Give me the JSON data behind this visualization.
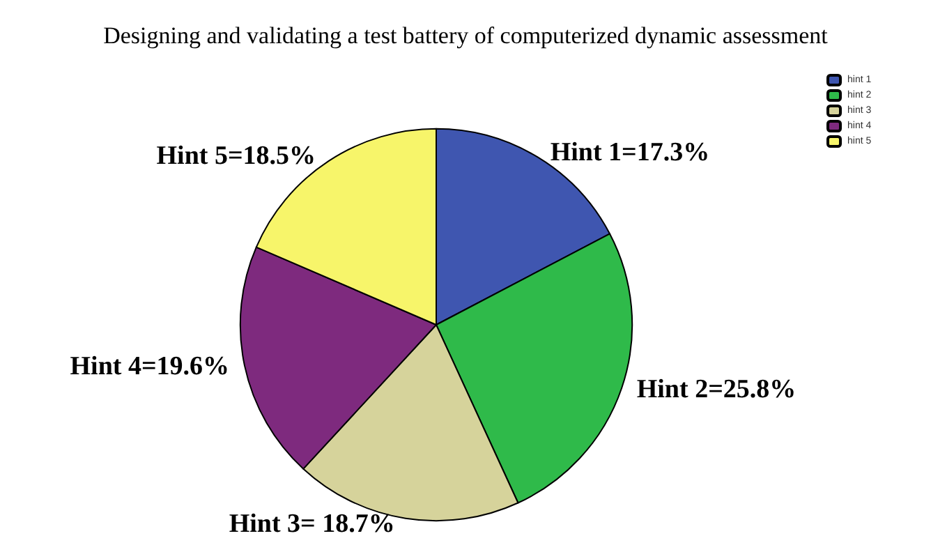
{
  "chart_data": {
    "type": "pie",
    "title": "Designing and validating a test battery of computerized dynamic assessment",
    "categories": [
      "hint 1",
      "hint 2",
      "hint 3",
      "hint 4",
      "hint 5"
    ],
    "values": [
      17.3,
      25.8,
      18.7,
      19.6,
      18.5
    ],
    "colors": [
      "#3f56b0",
      "#2fba4a",
      "#d6d39b",
      "#7e2a7e",
      "#f7f56a"
    ],
    "value_labels": [
      "Hint 1=17.3%",
      "Hint 2=25.8%",
      "Hint 3= 18.7%",
      "Hint 4=19.6%",
      "Hint 5=18.5%"
    ],
    "legend": "top right"
  }
}
